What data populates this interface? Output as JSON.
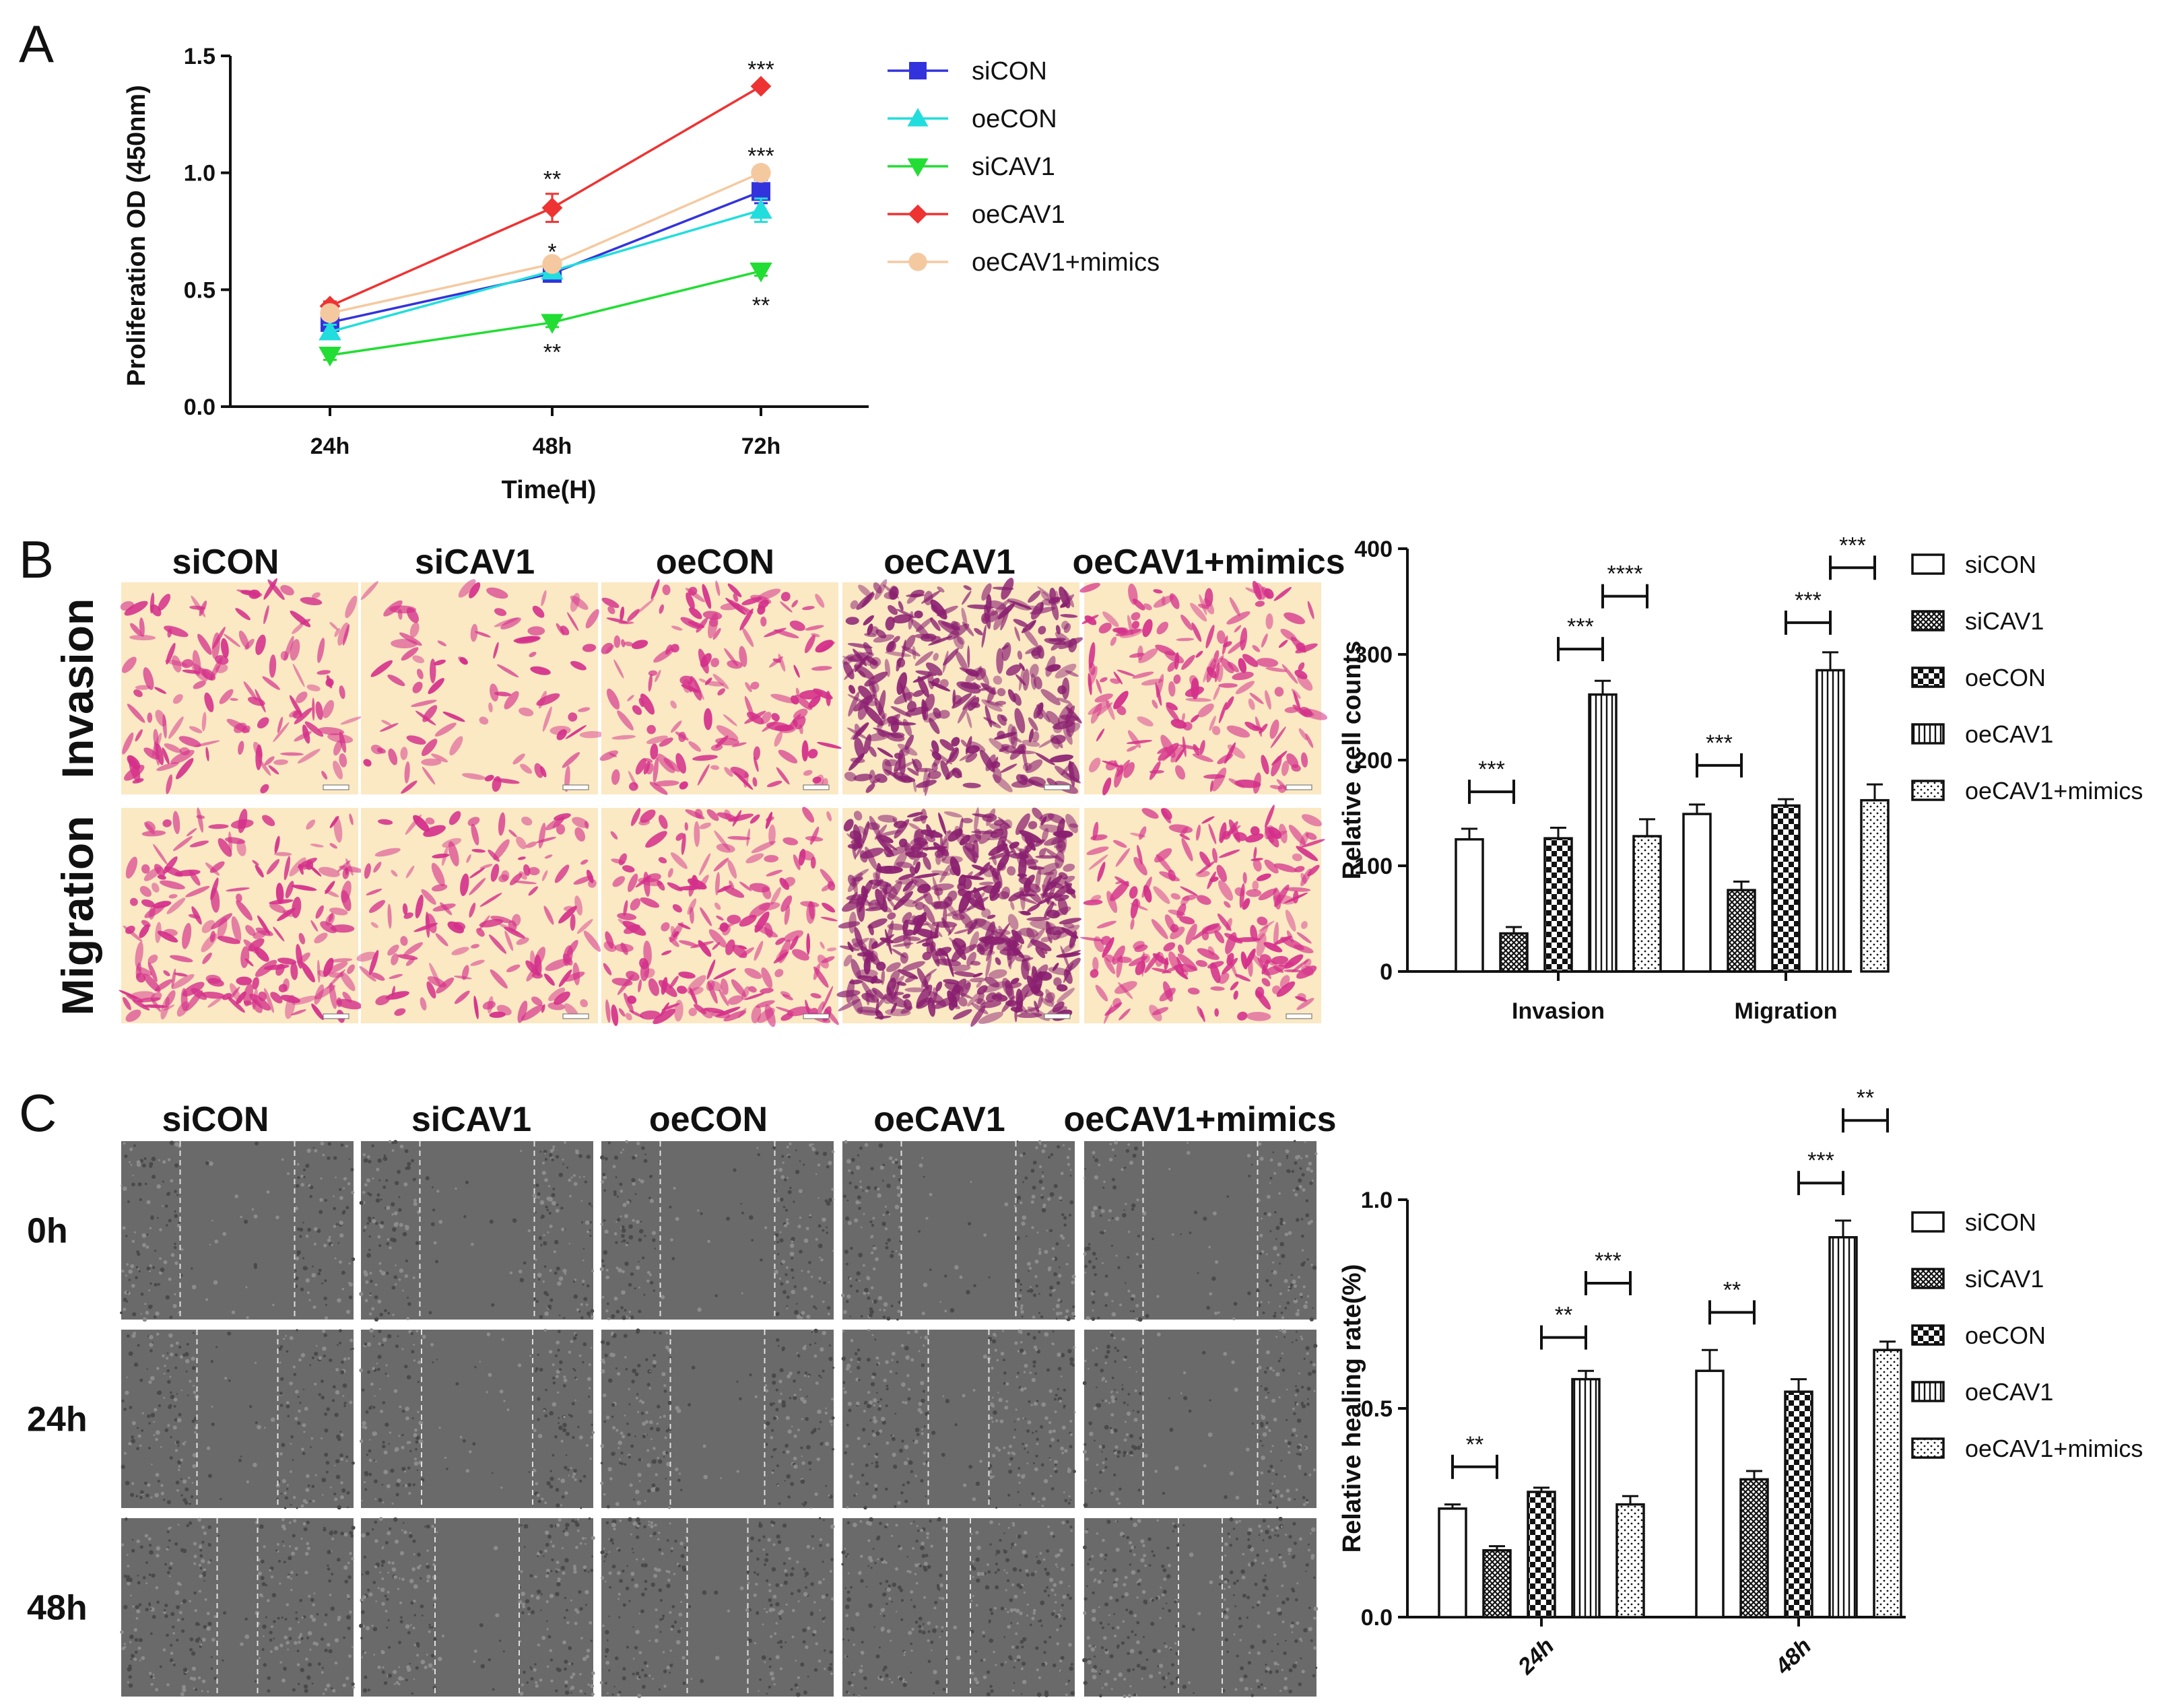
{
  "panels": {
    "a": "A",
    "b": "B",
    "c": "C"
  },
  "colors": {
    "siCON": "#3333dd",
    "oeCON": "#22dddd",
    "siCAV1": "#22dd33",
    "oeCAV1": "#ee3333",
    "oeCAV1+mimics": "#f5c9a0",
    "bar_stroke": "#111111",
    "invasion_bg": "#fbe9c4",
    "invasion_cell": "#d42f8a",
    "scratch_bg": "#6a6a6a"
  },
  "imageGrid": {
    "columns": [
      "siCON",
      "siCAV1",
      "oeCON",
      "oeCAV1",
      "oeCAV1+mimics"
    ],
    "b_rows": [
      "Invasion",
      "Migration"
    ],
    "c_rows": [
      "0h",
      "24h",
      "48h"
    ]
  },
  "chart_data": [
    {
      "id": "proliferation",
      "type": "line",
      "title": "",
      "xlabel": "Time(H)",
      "ylabel": "Proliferation OD (450nm)",
      "categories": [
        "24h",
        "48h",
        "72h"
      ],
      "ylim": [
        0,
        1.5
      ],
      "yticks": [
        "0.0",
        "0.5",
        "1.0",
        "1.5"
      ],
      "series": [
        {
          "name": "siCON",
          "values": [
            0.36,
            0.57,
            0.92
          ],
          "errors": [
            0.04,
            0.02,
            0.05
          ],
          "marker": "square"
        },
        {
          "name": "oeCON",
          "values": [
            0.32,
            0.58,
            0.84
          ],
          "errors": [
            0.03,
            0.02,
            0.05
          ],
          "marker": "triangle-up"
        },
        {
          "name": "siCAV1",
          "values": [
            0.22,
            0.36,
            0.58
          ],
          "errors": [
            0.02,
            0.02,
            0.02
          ],
          "marker": "triangle-down"
        },
        {
          "name": "oeCAV1",
          "values": [
            0.43,
            0.85,
            1.37
          ],
          "errors": [
            0.02,
            0.06,
            0.01
          ],
          "marker": "diamond"
        },
        {
          "name": "oeCAV1+mimics",
          "values": [
            0.4,
            0.61,
            1.0
          ],
          "errors": [
            0.02,
            0.02,
            0.02
          ],
          "marker": "circle"
        }
      ],
      "annotations": [
        {
          "text": "**",
          "category": "48h",
          "y": 0.98
        },
        {
          "text": "*",
          "category": "48h",
          "y": 0.67
        },
        {
          "text": "**",
          "category": "48h",
          "y": 0.24
        },
        {
          "text": "***",
          "category": "72h",
          "y": 1.45
        },
        {
          "text": "***",
          "category": "72h",
          "y": 1.08
        },
        {
          "text": "**",
          "category": "72h",
          "y": 0.44
        }
      ],
      "legend": "right"
    },
    {
      "id": "cell_counts",
      "type": "bar",
      "title": "",
      "xlabel": "",
      "ylabel": "Relative cell counts",
      "categories": [
        "Invasion",
        "Migration"
      ],
      "ylim": [
        0,
        400
      ],
      "yticks": [
        "0",
        "100",
        "200",
        "300",
        "400"
      ],
      "series": [
        {
          "name": "siCON",
          "values": [
            125,
            149
          ],
          "errors": [
            10,
            9
          ],
          "pattern": "plain"
        },
        {
          "name": "siCAV1",
          "values": [
            36,
            77
          ],
          "errors": [
            6,
            8
          ],
          "pattern": "dense"
        },
        {
          "name": "oeCON",
          "values": [
            126,
            157
          ],
          "errors": [
            10,
            6
          ],
          "pattern": "checker"
        },
        {
          "name": "oeCAV1",
          "values": [
            262,
            285
          ],
          "errors": [
            13,
            17
          ],
          "pattern": "vlines"
        },
        {
          "name": "oeCAV1+mimics",
          "values": [
            128,
            162
          ],
          "errors": [
            16,
            15
          ],
          "pattern": "dots"
        }
      ],
      "significance": [
        {
          "text": "***",
          "category": "Invasion",
          "from": 0,
          "to": 1,
          "y": 170
        },
        {
          "text": "***",
          "category": "Invasion",
          "from": 2,
          "to": 3,
          "y": 305
        },
        {
          "text": "****",
          "category": "Invasion",
          "from": 3,
          "to": 4,
          "y": 355
        },
        {
          "text": "***",
          "category": "Migration",
          "from": 0,
          "to": 1,
          "y": 195
        },
        {
          "text": "***",
          "category": "Migration",
          "from": 2,
          "to": 3,
          "y": 330
        },
        {
          "text": "***",
          "category": "Migration",
          "from": 3,
          "to": 4,
          "y": 382
        }
      ],
      "legend": "right"
    },
    {
      "id": "healing_rate",
      "type": "bar",
      "title": "",
      "xlabel": "",
      "ylabel": "Relative healing rate(%)",
      "categories": [
        "24h",
        "48h"
      ],
      "ylim": [
        0,
        1.0
      ],
      "yticks": [
        "0.0",
        "0.5",
        "1.0"
      ],
      "series": [
        {
          "name": "siCON",
          "values": [
            0.26,
            0.59
          ],
          "errors": [
            0.01,
            0.05
          ],
          "pattern": "plain"
        },
        {
          "name": "siCAV1",
          "values": [
            0.16,
            0.33
          ],
          "errors": [
            0.01,
            0.02
          ],
          "pattern": "dense"
        },
        {
          "name": "oeCON",
          "values": [
            0.3,
            0.54
          ],
          "errors": [
            0.01,
            0.03
          ],
          "pattern": "checker"
        },
        {
          "name": "oeCAV1",
          "values": [
            0.57,
            0.91
          ],
          "errors": [
            0.02,
            0.04
          ],
          "pattern": "vlines"
        },
        {
          "name": "oeCAV1+mimics",
          "values": [
            0.27,
            0.64
          ],
          "errors": [
            0.02,
            0.02
          ],
          "pattern": "dots"
        }
      ],
      "significance": [
        {
          "text": "**",
          "category": "24h",
          "from": 0,
          "to": 1,
          "y": 0.36
        },
        {
          "text": "**",
          "category": "24h",
          "from": 2,
          "to": 3,
          "y": 0.67
        },
        {
          "text": "***",
          "category": "24h",
          "from": 3,
          "to": 4,
          "y": 0.8
        },
        {
          "text": "**",
          "category": "48h",
          "from": 0,
          "to": 1,
          "y": 0.73
        },
        {
          "text": "***",
          "category": "48h",
          "from": 2,
          "to": 3,
          "y": 1.04
        },
        {
          "text": "**",
          "category": "48h",
          "from": 3,
          "to": 4,
          "y": 1.19
        }
      ],
      "legend": "right"
    }
  ]
}
